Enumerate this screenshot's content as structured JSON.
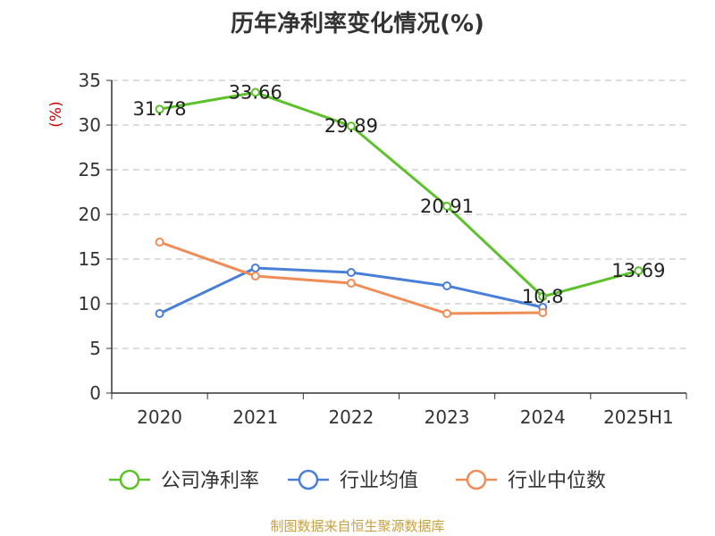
{
  "title": "历年净利率变化情况(%)",
  "footer": "制图数据来自恒生聚源数据库",
  "chart_data": {
    "type": "line",
    "title": "历年净利率变化情况(%)",
    "ylabel": "(%)",
    "xlabel": "",
    "categories": [
      "2020",
      "2021",
      "2022",
      "2023",
      "2024",
      "2025H1"
    ],
    "ylim": [
      0,
      35
    ],
    "yticks": [
      0,
      5,
      10,
      15,
      20,
      25,
      30,
      35
    ],
    "grid": true,
    "legend_position": "bottom",
    "series": [
      {
        "name": "公司净利率",
        "color": "#5cc12a",
        "values": [
          31.78,
          33.66,
          29.89,
          20.91,
          10.8,
          13.69
        ],
        "labels": [
          "31.78",
          "33.66",
          "29.89",
          "20.91",
          "10.8",
          "13.69"
        ]
      },
      {
        "name": "行业均值",
        "color": "#4a7fd8",
        "values": [
          8.9,
          14.0,
          13.5,
          12.0,
          9.6,
          null
        ],
        "labels": []
      },
      {
        "name": "行业中位数",
        "color": "#f08c57",
        "values": [
          16.9,
          13.1,
          12.3,
          8.9,
          9.0,
          null
        ],
        "labels": []
      }
    ]
  }
}
